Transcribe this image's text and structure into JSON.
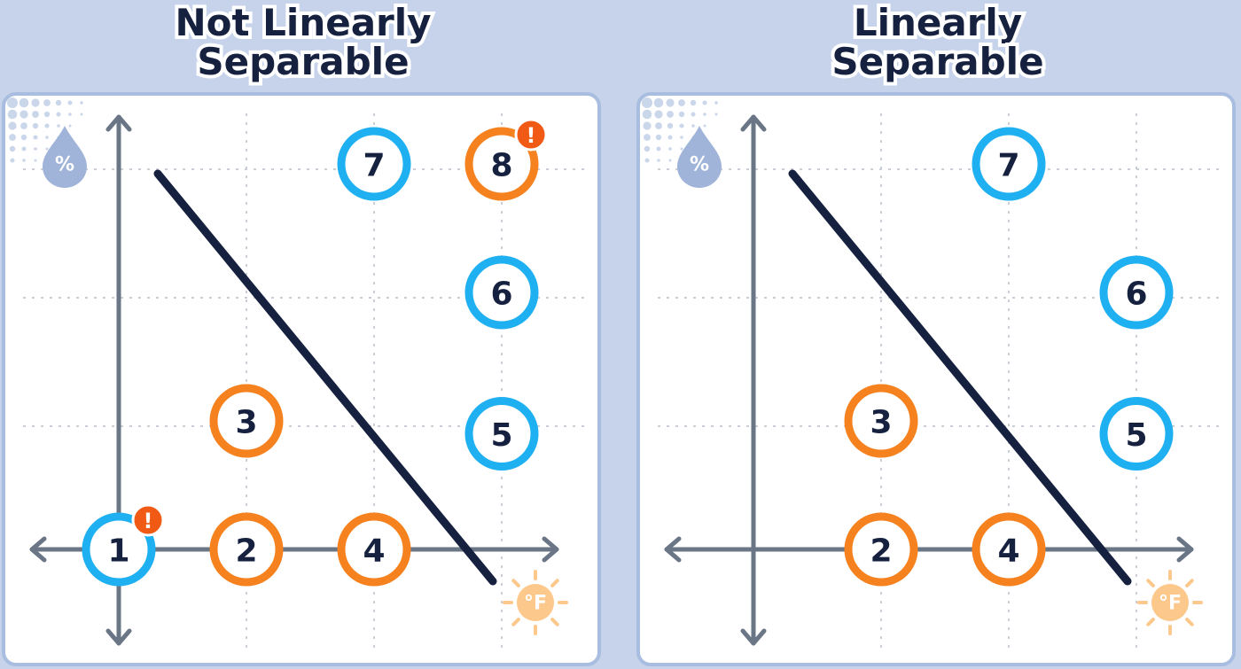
{
  "colors": {
    "background": "#c6d3ea",
    "panel_border": "#a9bde0",
    "axis": "#6a7585",
    "grid": "#c9ced6",
    "line": "#16213f",
    "blue": "#1fb0f2",
    "orange": "#f5821f",
    "sun": "#fcc88b",
    "drop": "#9fb4d8",
    "alert": "#f05a14"
  },
  "icons": {
    "humidity": "water-drop-percent-icon",
    "temperature": "sun-fahrenheit-icon",
    "warning": "exclamation-badge-icon"
  },
  "panels": [
    {
      "id": "left",
      "title_line1": "Not Linearly",
      "title_line2": "Separable",
      "humidity_symbol": "%",
      "temperature_symbol": "°F",
      "points": [
        {
          "label": "1",
          "class": "blue",
          "x": 0,
          "y": 0,
          "flagged": true
        },
        {
          "label": "2",
          "class": "orange",
          "x": 1,
          "y": 0,
          "flagged": false
        },
        {
          "label": "3",
          "class": "orange",
          "x": 1,
          "y": 1,
          "flagged": false
        },
        {
          "label": "4",
          "class": "orange",
          "x": 2,
          "y": 0,
          "flagged": false
        },
        {
          "label": "5",
          "class": "blue",
          "x": 3,
          "y": 0.9,
          "flagged": false
        },
        {
          "label": "6",
          "class": "blue",
          "x": 3,
          "y": 2,
          "flagged": false
        },
        {
          "label": "7",
          "class": "blue",
          "x": 2,
          "y": 3,
          "flagged": false
        },
        {
          "label": "8",
          "class": "orange",
          "x": 3,
          "y": 3,
          "flagged": true
        }
      ]
    },
    {
      "id": "right",
      "title_line1": "Linearly",
      "title_line2": "Separable",
      "humidity_symbol": "%",
      "temperature_symbol": "°F",
      "points": [
        {
          "label": "2",
          "class": "orange",
          "x": 1,
          "y": 0,
          "flagged": false
        },
        {
          "label": "3",
          "class": "orange",
          "x": 1,
          "y": 1,
          "flagged": false
        },
        {
          "label": "4",
          "class": "orange",
          "x": 2,
          "y": 0,
          "flagged": false
        },
        {
          "label": "5",
          "class": "blue",
          "x": 3,
          "y": 0.9,
          "flagged": false
        },
        {
          "label": "6",
          "class": "blue",
          "x": 3,
          "y": 2,
          "flagged": false
        },
        {
          "label": "7",
          "class": "blue",
          "x": 2,
          "y": 3,
          "flagged": false
        }
      ]
    }
  ]
}
